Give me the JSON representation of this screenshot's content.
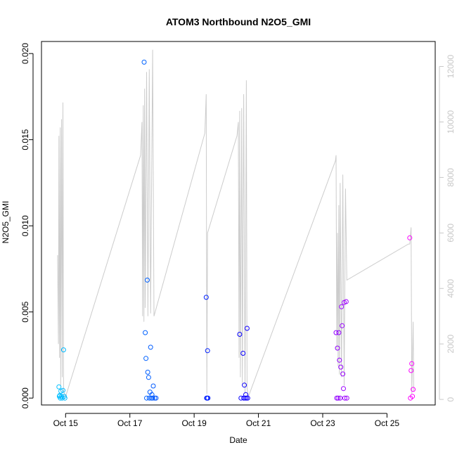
{
  "chart_data": {
    "type": "scatter",
    "title": "ATOM3 Northbound N2O5_GMI",
    "xlabel": "Date",
    "ylabel": "N2O5_GMI",
    "xlim": [
      "2017-10-14 06:00",
      "2017-10-26 12:00"
    ],
    "ylim": [
      -0.0004,
      0.0207
    ],
    "y_ticks": [
      {
        "value": 0.0,
        "label": "0.000"
      },
      {
        "value": 0.005,
        "label": "0.005"
      },
      {
        "value": 0.01,
        "label": "0.010"
      },
      {
        "value": 0.015,
        "label": "0.015"
      },
      {
        "value": 0.02,
        "label": "0.020"
      }
    ],
    "x_ticks": [
      {
        "value": "2017-10-15",
        "label": "Oct 15"
      },
      {
        "value": "2017-10-17",
        "label": "Oct 17"
      },
      {
        "value": "2017-10-19",
        "label": "Oct 19"
      },
      {
        "value": "2017-10-21",
        "label": "Oct 21"
      },
      {
        "value": "2017-10-23",
        "label": "Oct 23"
      },
      {
        "value": "2017-10-25",
        "label": "Oct 25"
      }
    ],
    "y2lim": [
      -200,
      12900
    ],
    "y2_ticks": [
      0,
      2000,
      4000,
      6000,
      8000,
      10000,
      12000
    ],
    "grid": false,
    "marker": "open-circle",
    "point_color_scale": [
      "#00bfff",
      "#0000ff",
      "#ff00ff"
    ],
    "line_color": "#cccccc",
    "points": [
      [
        "2017-10-14 19:00",
        0.00065
      ],
      [
        "2017-10-14 19:20",
        0.0001
      ],
      [
        "2017-10-14 19:40",
        0.00015
      ],
      [
        "2017-10-14 20:00",
        0.0
      ],
      [
        "2017-10-14 20:30",
        0.0004
      ],
      [
        "2017-10-14 21:00",
        0.0001
      ],
      [
        "2017-10-14 21:30",
        0.0
      ],
      [
        "2017-10-14 22:00",
        0.00045
      ],
      [
        "2017-10-14 22:30",
        0.0028
      ],
      [
        "2017-10-14 23:00",
        0.0001
      ],
      [
        "2017-10-14 23:30",
        0.0
      ],
      [
        "2017-10-17 10:40",
        0.0195
      ],
      [
        "2017-10-17 11:30",
        0.0038
      ],
      [
        "2017-10-17 12:00",
        0.0023
      ],
      [
        "2017-10-17 13:00",
        0.00685
      ],
      [
        "2017-10-17 13:20",
        0.0015
      ],
      [
        "2017-10-17 14:00",
        0.0012
      ],
      [
        "2017-10-17 14:30",
        0.0
      ],
      [
        "2017-10-17 15:00",
        0.00035
      ],
      [
        "2017-10-17 15:30",
        0.00295
      ],
      [
        "2017-10-17 16:00",
        0.0
      ],
      [
        "2017-10-17 16:30",
        0.0002
      ],
      [
        "2017-10-17 17:00",
        0.0
      ],
      [
        "2017-10-17 17:30",
        0.0007
      ],
      [
        "2017-10-17 18:30",
        0.0
      ],
      [
        "2017-10-17 19:30",
        0.0
      ],
      [
        "2017-10-17 12:30",
        0.0
      ],
      [
        "2017-10-19 09:00",
        0.00585
      ],
      [
        "2017-10-19 09:20",
        0.0
      ],
      [
        "2017-10-19 09:40",
        0.0
      ],
      [
        "2017-10-19 10:00",
        0.00275
      ],
      [
        "2017-10-19 10:20",
        0.0
      ],
      [
        "2017-10-20 10:00",
        0.0037
      ],
      [
        "2017-10-20 11:00",
        0.0
      ],
      [
        "2017-10-20 12:30",
        0.0026
      ],
      [
        "2017-10-20 13:00",
        0.0
      ],
      [
        "2017-10-20 13:30",
        0.00075
      ],
      [
        "2017-10-20 14:00",
        0.0
      ],
      [
        "2017-10-20 14:30",
        0.0002
      ],
      [
        "2017-10-20 15:00",
        0.0
      ],
      [
        "2017-10-20 15:30",
        0.00405
      ],
      [
        "2017-10-20 16:00",
        0.0
      ],
      [
        "2017-10-23 10:00",
        0.0038
      ],
      [
        "2017-10-23 10:30",
        0.0
      ],
      [
        "2017-10-23 11:00",
        0.0029
      ],
      [
        "2017-10-23 11:30",
        0.0
      ],
      [
        "2017-10-23 12:00",
        0.0038
      ],
      [
        "2017-10-23 12:30",
        0.0022
      ],
      [
        "2017-10-23 13:00",
        0.0
      ],
      [
        "2017-10-23 13:30",
        0.0018
      ],
      [
        "2017-10-23 14:00",
        0.0053
      ],
      [
        "2017-10-23 14:30",
        0.0042
      ],
      [
        "2017-10-23 15:00",
        0.0014
      ],
      [
        "2017-10-23 15:30",
        0.00055
      ],
      [
        "2017-10-23 16:00",
        0.00555
      ],
      [
        "2017-10-23 16:30",
        0.0
      ],
      [
        "2017-10-23 17:30",
        0.0056
      ],
      [
        "2017-10-23 18:00",
        0.0
      ],
      [
        "2017-10-25 17:00",
        0.0093
      ],
      [
        "2017-10-25 17:30",
        0.0
      ],
      [
        "2017-10-25 18:00",
        0.0016
      ],
      [
        "2017-10-25 18:30",
        0.002
      ],
      [
        "2017-10-25 19:00",
        0.0001
      ],
      [
        "2017-10-25 19:30",
        0.0005
      ]
    ],
    "line_series": [
      [
        "2017-10-14 18:00",
        5200
      ],
      [
        "2017-10-14 18:40",
        2000
      ],
      [
        "2017-10-14 19:00",
        9500
      ],
      [
        "2017-10-14 19:30",
        1500
      ],
      [
        "2017-10-14 20:00",
        9800
      ],
      [
        "2017-10-14 20:20",
        500
      ],
      [
        "2017-10-14 21:00",
        10100
      ],
      [
        "2017-10-14 21:30",
        800
      ],
      [
        "2017-10-14 22:00",
        10700
      ],
      [
        "2017-10-14 22:30",
        300
      ],
      [
        "2017-10-15 00:00",
        100
      ],
      [
        "2017-10-17 08:00",
        8800
      ],
      [
        "2017-10-17 09:00",
        10000
      ],
      [
        "2017-10-17 09:30",
        3000
      ],
      [
        "2017-10-17 10:00",
        10600
      ],
      [
        "2017-10-17 10:30",
        2800
      ],
      [
        "2017-10-17 11:00",
        11200
      ],
      [
        "2017-10-17 11:30",
        3300
      ],
      [
        "2017-10-17 12:30",
        11800
      ],
      [
        "2017-10-17 13:30",
        3000
      ],
      [
        "2017-10-17 14:30",
        11900
      ],
      [
        "2017-10-17 15:30",
        3100
      ],
      [
        "2017-10-17 17:00",
        12600
      ],
      [
        "2017-10-17 18:00",
        3000
      ],
      [
        "2017-10-19 08:00",
        9600
      ],
      [
        "2017-10-19 09:00",
        11000
      ],
      [
        "2017-10-19 09:30",
        200
      ],
      [
        "2017-10-19 10:00",
        6000
      ],
      [
        "2017-10-20 08:00",
        9500
      ],
      [
        "2017-10-20 09:00",
        10000
      ],
      [
        "2017-10-20 09:30",
        1500
      ],
      [
        "2017-10-20 10:00",
        10400
      ],
      [
        "2017-10-20 10:30",
        800
      ],
      [
        "2017-10-20 11:30",
        10500
      ],
      [
        "2017-10-20 12:00",
        500
      ],
      [
        "2017-10-20 13:00",
        11000
      ],
      [
        "2017-10-20 14:00",
        200
      ],
      [
        "2017-10-20 15:00",
        11500
      ],
      [
        "2017-10-20 15:30",
        400
      ],
      [
        "2017-10-20 16:30",
        100
      ],
      [
        "2017-10-23 09:30",
        8600
      ],
      [
        "2017-10-23 10:00",
        8800
      ],
      [
        "2017-10-23 10:30",
        1800
      ],
      [
        "2017-10-23 11:00",
        6000
      ],
      [
        "2017-10-23 11:30",
        1200
      ],
      [
        "2017-10-23 12:00",
        7000
      ],
      [
        "2017-10-23 12:30",
        900
      ],
      [
        "2017-10-23 13:00",
        7800
      ],
      [
        "2017-10-23 14:00",
        800
      ],
      [
        "2017-10-23 15:00",
        8100
      ],
      [
        "2017-10-23 16:00",
        500
      ],
      [
        "2017-10-23 17:00",
        7600
      ],
      [
        "2017-10-23 18:00",
        4300
      ],
      [
        "2017-10-25 16:00",
        5600
      ],
      [
        "2017-10-25 17:00",
        5600
      ],
      [
        "2017-10-25 18:00",
        6200
      ],
      [
        "2017-10-25 18:30",
        200
      ],
      [
        "2017-10-25 19:30",
        2800
      ],
      [
        "2017-10-25 20:00",
        300
      ]
    ]
  }
}
